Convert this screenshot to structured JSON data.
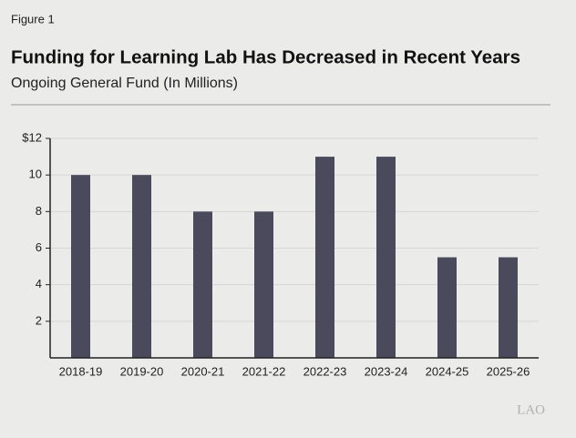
{
  "figure_label": "Figure 1",
  "logo": "LAO",
  "chart_data": {
    "type": "bar",
    "title": "Funding for Learning Lab Has Decreased in Recent Years",
    "subtitle": "Ongoing General Fund (In Millions)",
    "categories": [
      "2018-19",
      "2019-20",
      "2020-21",
      "2021-22",
      "2022-23",
      "2023-24",
      "2024-25",
      "2025-26"
    ],
    "values": [
      10,
      10,
      8,
      8,
      11,
      11,
      5.5,
      5.5
    ],
    "color": "#4a4a5c",
    "ylim": [
      0,
      12
    ],
    "yticks": [
      2,
      4,
      6,
      8,
      10,
      {
        "value": 12,
        "label": "$12"
      }
    ],
    "grid": true
  }
}
